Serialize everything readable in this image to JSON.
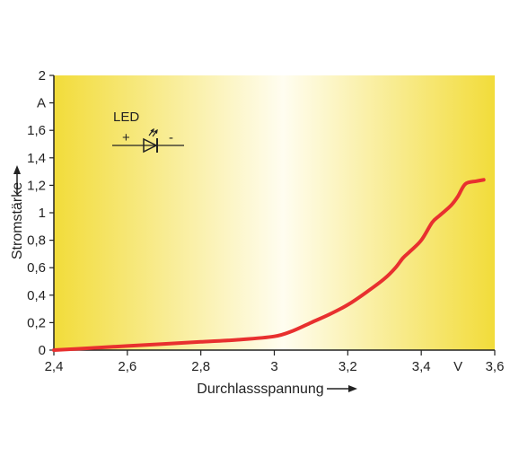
{
  "chart_data": {
    "type": "line",
    "title": "",
    "xlabel": "Durchlassspannung",
    "ylabel": "Stromstärke",
    "x_unit": "V",
    "y_unit": "A",
    "xlim": [
      2.4,
      3.6
    ],
    "ylim": [
      0,
      2
    ],
    "x_ticks": [
      {
        "value": 2.4,
        "label": "2,4"
      },
      {
        "value": 2.6,
        "label": "2,6"
      },
      {
        "value": 2.8,
        "label": "2,8"
      },
      {
        "value": 3.0,
        "label": "3"
      },
      {
        "value": 3.2,
        "label": "3,2"
      },
      {
        "value": 3.4,
        "label": "3,4"
      },
      {
        "value": 3.6,
        "label": "3,6"
      }
    ],
    "y_ticks": [
      {
        "value": 0,
        "label": "0"
      },
      {
        "value": 0.2,
        "label": "0,2"
      },
      {
        "value": 0.4,
        "label": "0,4"
      },
      {
        "value": 0.6,
        "label": "0,6"
      },
      {
        "value": 0.8,
        "label": "0,8"
      },
      {
        "value": 1.0,
        "label": "1"
      },
      {
        "value": 1.2,
        "label": "1,2"
      },
      {
        "value": 1.4,
        "label": "1,4"
      },
      {
        "value": 1.6,
        "label": "1,6"
      },
      {
        "value": 1.8,
        "label": "A"
      },
      {
        "value": 2.0,
        "label": "2"
      }
    ],
    "grid": false,
    "series": [
      {
        "color": "#e8302f",
        "x": [
          2.4,
          2.5,
          2.6,
          2.7,
          2.8,
          2.9,
          3.0,
          3.05,
          3.1,
          3.15,
          3.2,
          3.25,
          3.3,
          3.33,
          3.35,
          3.37,
          3.4,
          3.43,
          3.45,
          3.48,
          3.5,
          3.52,
          3.55,
          3.57
        ],
        "y": [
          0.0,
          0.015,
          0.03,
          0.045,
          0.06,
          0.075,
          0.1,
          0.14,
          0.2,
          0.26,
          0.33,
          0.42,
          0.52,
          0.6,
          0.67,
          0.72,
          0.8,
          0.93,
          0.98,
          1.05,
          1.12,
          1.21,
          1.23,
          1.24
        ]
      }
    ]
  },
  "led_symbol": {
    "label": "LED",
    "plus": "+",
    "minus": "-"
  },
  "colors": {
    "gradient_edge": "#f2dc3a",
    "gradient_center": "#fffdf0",
    "axis": "#222222",
    "curve": "#e8302f"
  }
}
